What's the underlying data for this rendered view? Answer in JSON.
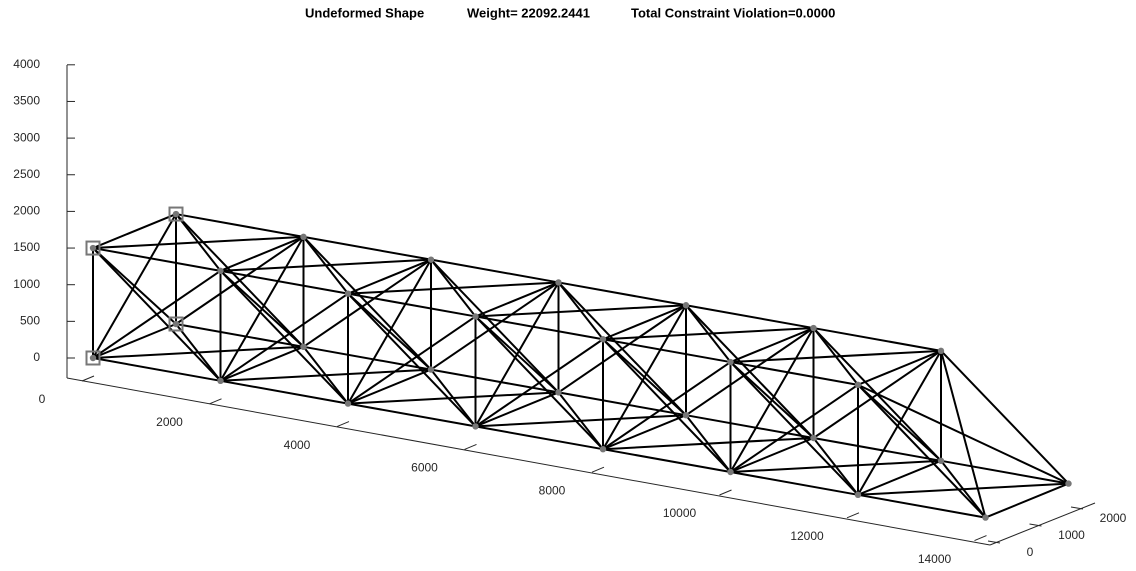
{
  "chart_data": {
    "type": "truss3d",
    "title": [
      "Undeformed Shape",
      "Weight= 22092.2441",
      "Total Constraint Violation=0.0000"
    ],
    "xticks": [
      0,
      2000,
      4000,
      6000,
      8000,
      10000,
      12000,
      14000
    ],
    "yticks": [
      0,
      1000,
      2000
    ],
    "zticks": [
      0,
      500,
      1000,
      1500,
      2000,
      2500,
      3000,
      3500,
      4000
    ],
    "nodes": [
      [
        0,
        0,
        0
      ],
      [
        0,
        2000,
        0
      ],
      [
        0,
        0,
        1500
      ],
      [
        0,
        2000,
        1500
      ],
      [
        2000,
        0,
        0
      ],
      [
        2000,
        2000,
        0
      ],
      [
        2000,
        0,
        1500
      ],
      [
        2000,
        2000,
        1500
      ],
      [
        4000,
        0,
        0
      ],
      [
        4000,
        2000,
        0
      ],
      [
        4000,
        0,
        1500
      ],
      [
        4000,
        2000,
        1500
      ],
      [
        6000,
        0,
        0
      ],
      [
        6000,
        2000,
        0
      ],
      [
        6000,
        0,
        1500
      ],
      [
        6000,
        2000,
        1500
      ],
      [
        8000,
        0,
        0
      ],
      [
        8000,
        2000,
        0
      ],
      [
        8000,
        0,
        1500
      ],
      [
        8000,
        2000,
        1500
      ],
      [
        10000,
        0,
        0
      ],
      [
        10000,
        2000,
        0
      ],
      [
        10000,
        0,
        1500
      ],
      [
        10000,
        2000,
        1500
      ],
      [
        12000,
        0,
        0
      ],
      [
        12000,
        2000,
        0
      ],
      [
        12000,
        0,
        1500
      ],
      [
        12000,
        2000,
        1500
      ],
      [
        14000,
        0,
        0
      ],
      [
        14000,
        2000,
        0
      ]
    ],
    "supports": [
      0,
      1,
      2,
      3
    ]
  }
}
